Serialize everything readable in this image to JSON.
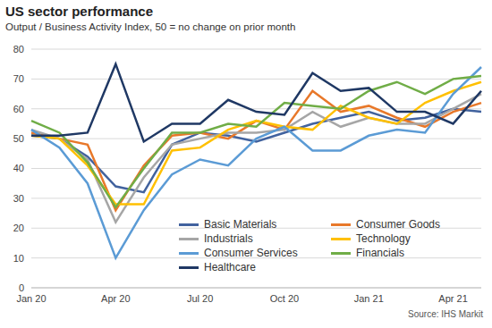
{
  "chart_data": {
    "type": "line",
    "title": "US sector performance",
    "subtitle": "Output / Business Activity Index, 50 = no change on prior month",
    "source": "Source: IHS Markit",
    "categories": [
      "Jan 20",
      null,
      null,
      "Apr 20",
      null,
      null,
      "Jul 20",
      null,
      null,
      "Oct 20",
      null,
      null,
      "Jan 21",
      null,
      null,
      "Apr 21",
      null
    ],
    "series": [
      {
        "name": "Basic Materials",
        "color": "#41629e",
        "values": [
          51,
          50,
          44,
          34,
          32,
          48,
          52,
          51,
          49,
          52,
          55,
          57,
          59,
          56,
          57,
          60,
          59
        ]
      },
      {
        "name": "Consumer Goods",
        "color": "#e8782a",
        "values": [
          52,
          50,
          48,
          26,
          41,
          51,
          52,
          50,
          56,
          53,
          66,
          59,
          61,
          57,
          54,
          59,
          62
        ]
      },
      {
        "name": "Industrials",
        "color": "#a6a6a6",
        "values": [
          53,
          50,
          43,
          22,
          37,
          48,
          50,
          52,
          52,
          53,
          59,
          54,
          57,
          55,
          55,
          60,
          65
        ]
      },
      {
        "name": "Technology",
        "color": "#ffc000",
        "values": [
          51,
          50,
          41,
          28,
          28,
          46,
          47,
          53,
          56,
          54,
          53,
          61,
          57,
          55,
          62,
          66,
          69
        ]
      },
      {
        "name": "Consumer Services",
        "color": "#5b9bd5",
        "values": [
          53,
          47,
          35,
          10,
          26,
          38,
          43,
          41,
          50,
          54,
          46,
          46,
          51,
          53,
          52,
          65,
          74
        ]
      },
      {
        "name": "Financials",
        "color": "#70ad47",
        "values": [
          56,
          52,
          42,
          27,
          40,
          52,
          52,
          55,
          54,
          62,
          61,
          60,
          66,
          69,
          65,
          70,
          71
        ]
      },
      {
        "name": "Healthcare",
        "color": "#1f3864",
        "values": [
          51,
          51,
          52,
          75,
          49,
          55,
          55,
          63,
          59,
          58,
          72,
          66,
          67,
          59,
          59,
          55,
          66
        ]
      }
    ],
    "ylim": [
      0,
      80
    ],
    "yticks": [
      0,
      10,
      20,
      30,
      40,
      50,
      60,
      70,
      80
    ],
    "grid": true,
    "legend": "bottom right"
  }
}
